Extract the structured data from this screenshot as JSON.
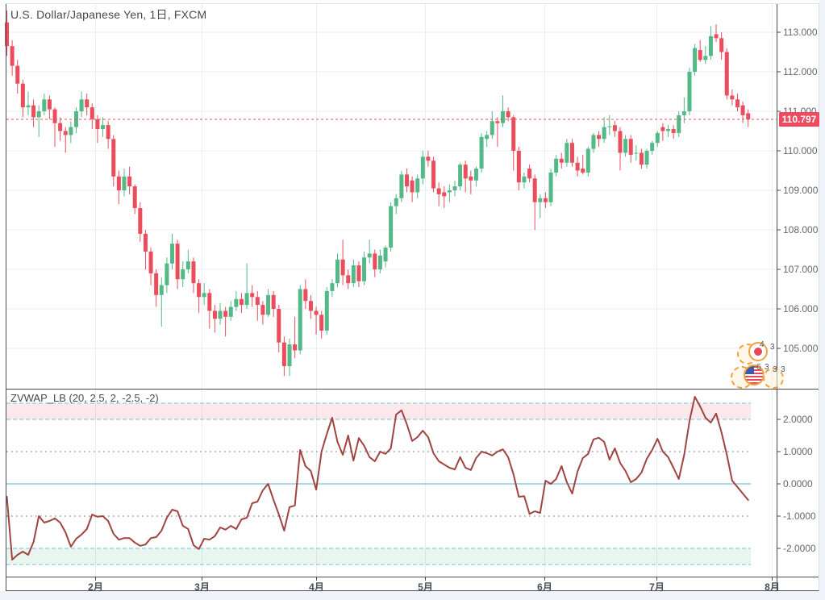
{
  "header": {
    "symbol_title": "U.S. Dollar/Japanese Yen, 1日, FXCM"
  },
  "indicator_header": {
    "title": "ZVWAP_LB (20, 2.5, 2, -2.5, -2)"
  },
  "price_axis": {
    "labels": [
      "113.000",
      "112.000",
      "111.000",
      "110.000",
      "109.000",
      "108.000",
      "107.000",
      "106.000",
      "105.000"
    ],
    "last_price_label": "110.797"
  },
  "value_axis": {
    "labels": [
      "2.0000",
      "1.0000",
      "0.0000",
      "-1.0000",
      "-2.0000"
    ]
  },
  "time_axis": {
    "labels": [
      "2月",
      "3月",
      "4月",
      "5月",
      "6月",
      "7月",
      "8月"
    ]
  },
  "event_markers": {
    "top_group_digits": [
      "4",
      "3"
    ],
    "bottom_group_digits": [
      "6",
      "3",
      "3",
      "3"
    ]
  },
  "colors": {
    "up": "#53b987",
    "down": "#eb4d5c",
    "indicator_line": "#a04441",
    "last_price_bg": "#ef4a60",
    "current_price_line": "#ef4a60",
    "band_edge": "#74c3d8",
    "zero_line": "#5cb6cf",
    "dotted_level": "#90949c",
    "grid": "#e9eef4",
    "border": "#4a4d56",
    "page_bg": "#f0f3fa"
  },
  "chart_data": [
    {
      "type": "candlestick",
      "pane": "main",
      "title": "U.S. Dollar/Japanese Yen, 1日, FXCM",
      "ylim": [
        104.2,
        113.7
      ],
      "y_ticks": [
        "113.000",
        "112.000",
        "111.000",
        "110.000",
        "109.000",
        "108.000",
        "107.000",
        "106.000",
        "105.000"
      ],
      "x_ticks": [
        "2月",
        "3月",
        "4月",
        "5月",
        "6月",
        "7月",
        "8月"
      ],
      "grid": true,
      "last_price": 110.797,
      "candles": [
        [
          113.25,
          113.55,
          112.4,
          112.65
        ],
        [
          112.65,
          112.8,
          111.9,
          112.15
        ],
        [
          112.15,
          112.3,
          111.45,
          111.7
        ],
        [
          111.7,
          111.8,
          110.85,
          111.1
        ],
        [
          111.1,
          111.5,
          110.9,
          111.15
        ],
        [
          111.15,
          111.3,
          110.6,
          110.85
        ],
        [
          110.85,
          111.15,
          110.35,
          111.0
        ],
        [
          111.0,
          111.45,
          110.9,
          111.3
        ],
        [
          111.3,
          111.4,
          110.8,
          111.05
        ],
        [
          111.05,
          111.1,
          110.1,
          110.7
        ],
        [
          110.7,
          110.85,
          110.25,
          110.5
        ],
        [
          110.5,
          110.6,
          109.95,
          110.4
        ],
        [
          110.4,
          110.75,
          110.2,
          110.6
        ],
        [
          110.6,
          111.1,
          110.45,
          111.0
        ],
        [
          111.0,
          111.5,
          110.85,
          111.3
        ],
        [
          111.3,
          111.45,
          110.9,
          111.1
        ],
        [
          111.1,
          111.2,
          110.55,
          110.8
        ],
        [
          110.8,
          110.9,
          110.2,
          110.55
        ],
        [
          110.55,
          110.85,
          110.35,
          110.65
        ],
        [
          110.65,
          110.75,
          110.05,
          110.3
        ],
        [
          110.3,
          110.4,
          109.1,
          109.35
        ],
        [
          109.35,
          109.5,
          108.65,
          109.0
        ],
        [
          109.0,
          109.55,
          108.85,
          109.35
        ],
        [
          109.35,
          109.6,
          108.9,
          109.1
        ],
        [
          109.1,
          109.15,
          108.4,
          108.55
        ],
        [
          108.55,
          108.7,
          107.7,
          107.9
        ],
        [
          107.9,
          108.0,
          107.0,
          107.45
        ],
        [
          107.45,
          107.55,
          106.6,
          106.9
        ],
        [
          106.9,
          107.0,
          106.05,
          106.35
        ],
        [
          106.35,
          106.8,
          105.55,
          106.6
        ],
        [
          106.6,
          107.3,
          106.4,
          107.15
        ],
        [
          107.15,
          107.9,
          107.0,
          107.65
        ],
        [
          107.65,
          107.75,
          106.5,
          106.75
        ],
        [
          106.75,
          107.2,
          106.55,
          107.0
        ],
        [
          107.0,
          107.5,
          106.9,
          107.2
        ],
        [
          107.2,
          107.3,
          106.4,
          106.65
        ],
        [
          106.65,
          106.75,
          105.9,
          106.3
        ],
        [
          106.3,
          106.65,
          106.1,
          106.4
        ],
        [
          106.4,
          106.5,
          105.5,
          105.95
        ],
        [
          105.95,
          106.1,
          105.4,
          105.75
        ],
        [
          105.75,
          106.15,
          105.6,
          105.95
        ],
        [
          105.95,
          106.05,
          105.3,
          105.8
        ],
        [
          105.8,
          106.2,
          105.7,
          106.05
        ],
        [
          106.05,
          106.45,
          105.95,
          106.25
        ],
        [
          106.25,
          106.4,
          105.9,
          106.1
        ],
        [
          106.1,
          107.15,
          106.0,
          106.4
        ],
        [
          106.4,
          106.6,
          106.05,
          106.3
        ],
        [
          106.3,
          106.45,
          105.7,
          106.1
        ],
        [
          106.1,
          106.2,
          105.6,
          105.85
        ],
        [
          105.85,
          106.5,
          105.8,
          106.35
        ],
        [
          106.35,
          106.45,
          105.8,
          106.0
        ],
        [
          106.0,
          106.1,
          104.9,
          105.15
        ],
        [
          105.15,
          105.3,
          104.3,
          104.55
        ],
        [
          104.55,
          105.25,
          104.3,
          105.1
        ],
        [
          105.1,
          105.8,
          104.75,
          104.95
        ],
        [
          104.95,
          106.6,
          104.85,
          106.5
        ],
        [
          106.5,
          106.75,
          106.0,
          106.2
        ],
        [
          106.2,
          106.35,
          105.75,
          105.95
        ],
        [
          105.95,
          106.05,
          105.35,
          105.85
        ],
        [
          105.85,
          105.95,
          105.25,
          105.45
        ],
        [
          105.45,
          106.55,
          105.35,
          106.45
        ],
        [
          106.45,
          106.75,
          106.3,
          106.65
        ],
        [
          106.65,
          107.4,
          106.55,
          107.25
        ],
        [
          107.25,
          107.75,
          106.6,
          106.85
        ],
        [
          106.85,
          107.0,
          106.5,
          106.65
        ],
        [
          106.65,
          107.25,
          106.55,
          107.1
        ],
        [
          107.1,
          107.2,
          106.55,
          106.7
        ],
        [
          106.7,
          107.45,
          106.6,
          107.3
        ],
        [
          107.3,
          107.75,
          107.15,
          107.4
        ],
        [
          107.4,
          107.5,
          106.8,
          107.0
        ],
        [
          107.0,
          107.5,
          106.9,
          107.35
        ],
        [
          107.2,
          107.6,
          107.05,
          107.55
        ],
        [
          107.55,
          108.7,
          107.45,
          108.6
        ],
        [
          108.6,
          108.9,
          108.4,
          108.8
        ],
        [
          108.8,
          109.5,
          108.7,
          109.4
        ],
        [
          109.4,
          109.55,
          108.95,
          109.1
        ],
        [
          109.25,
          109.35,
          108.7,
          108.95
        ],
        [
          108.95,
          109.4,
          108.8,
          109.3
        ],
        [
          109.3,
          110.0,
          109.15,
          109.85
        ],
        [
          109.85,
          110.0,
          109.6,
          109.75
        ],
        [
          109.75,
          109.85,
          108.95,
          109.05
        ],
        [
          109.05,
          109.2,
          108.6,
          108.9
        ],
        [
          108.95,
          109.1,
          108.55,
          108.85
        ],
        [
          108.95,
          109.15,
          108.7,
          109.0
        ],
        [
          109.0,
          109.25,
          108.85,
          109.1
        ],
        [
          109.1,
          109.7,
          109.0,
          109.65
        ],
        [
          109.65,
          109.75,
          108.95,
          109.3
        ],
        [
          109.35,
          109.5,
          108.9,
          109.25
        ],
        [
          109.25,
          109.6,
          109.1,
          109.55
        ],
        [
          109.55,
          110.45,
          109.45,
          110.35
        ],
        [
          110.3,
          110.5,
          110.1,
          110.4
        ],
        [
          110.4,
          111.0,
          110.3,
          110.75
        ],
        [
          110.75,
          110.85,
          110.1,
          110.7
        ],
        [
          110.7,
          111.4,
          110.6,
          111.0
        ],
        [
          111.0,
          111.1,
          110.75,
          110.85
        ],
        [
          110.85,
          110.9,
          109.5,
          110.0
        ],
        [
          110.0,
          110.1,
          109.0,
          109.2
        ],
        [
          109.2,
          109.45,
          109.05,
          109.35
        ],
        [
          109.55,
          109.65,
          109.2,
          109.3
        ],
        [
          109.3,
          109.4,
          108.0,
          108.7
        ],
        [
          108.7,
          108.9,
          108.3,
          108.8
        ],
        [
          108.8,
          108.95,
          108.55,
          108.7
        ],
        [
          108.7,
          109.55,
          108.6,
          109.45
        ],
        [
          109.45,
          109.9,
          109.35,
          109.8
        ],
        [
          109.8,
          109.95,
          109.55,
          109.7
        ],
        [
          109.7,
          110.3,
          109.6,
          110.2
        ],
        [
          110.2,
          110.3,
          109.6,
          109.7
        ],
        [
          109.7,
          109.85,
          109.35,
          109.5
        ],
        [
          109.55,
          109.9,
          109.4,
          109.45
        ],
        [
          109.45,
          110.1,
          109.35,
          110.05
        ],
        [
          110.05,
          110.45,
          109.95,
          110.4
        ],
        [
          110.4,
          110.5,
          110.1,
          110.3
        ],
        [
          110.3,
          110.85,
          110.2,
          110.6
        ],
        [
          110.6,
          110.9,
          110.4,
          110.62
        ],
        [
          110.65,
          110.75,
          110.35,
          110.5
        ],
        [
          110.5,
          110.6,
          109.5,
          109.95
        ],
        [
          109.95,
          110.4,
          109.85,
          110.3
        ],
        [
          110.3,
          110.4,
          109.7,
          109.9
        ],
        [
          109.95,
          110.15,
          109.75,
          109.95
        ],
        [
          109.95,
          110.05,
          109.55,
          109.65
        ],
        [
          109.65,
          110.05,
          109.55,
          110.0
        ],
        [
          110.0,
          110.25,
          109.9,
          110.2
        ],
        [
          110.2,
          110.5,
          110.1,
          110.45
        ],
        [
          110.6,
          110.7,
          110.25,
          110.5
        ],
        [
          110.5,
          110.65,
          110.35,
          110.55
        ],
        [
          110.55,
          110.65,
          110.3,
          110.45
        ],
        [
          110.45,
          111.0,
          110.35,
          110.9
        ],
        [
          110.9,
          111.35,
          110.7,
          111.0
        ],
        [
          111.0,
          112.1,
          110.9,
          112.0
        ],
        [
          112.0,
          112.7,
          111.9,
          112.6
        ],
        [
          112.55,
          112.8,
          112.25,
          112.3
        ],
        [
          112.3,
          112.65,
          112.2,
          112.4
        ],
        [
          112.4,
          113.15,
          112.3,
          112.9
        ],
        [
          112.95,
          113.2,
          112.75,
          112.85
        ],
        [
          112.85,
          113.0,
          112.3,
          112.5
        ],
        [
          112.5,
          112.6,
          111.3,
          111.4
        ],
        [
          111.4,
          111.55,
          111.15,
          111.3
        ],
        [
          111.3,
          111.45,
          111.0,
          111.1
        ],
        [
          111.15,
          111.25,
          110.7,
          110.9
        ],
        [
          110.95,
          111.05,
          110.6,
          110.797
        ]
      ]
    },
    {
      "type": "line",
      "pane": "indicator",
      "title": "ZVWAP_LB (20, 2.5, 2, -2.5, -2)",
      "ylim": [
        -2.75,
        2.85
      ],
      "y_ticks": [
        "2.0000",
        "1.0000",
        "0.0000",
        "-1.0000",
        "-2.0000"
      ],
      "bands": [
        {
          "from": 2.0,
          "to": 2.5,
          "fill": "down-color",
          "opacity": 0.12
        },
        {
          "from": -2.5,
          "to": -2.0,
          "fill": "up-color",
          "opacity": 0.13
        }
      ],
      "hlines": [
        {
          "value": 1.0,
          "style": "dotted-gray"
        },
        {
          "value": 0.0,
          "style": "solid-cyan"
        },
        {
          "value": -1.0,
          "style": "dotted-gray"
        }
      ],
      "values": [
        -0.4,
        -2.35,
        -2.2,
        -2.1,
        -2.2,
        -1.8,
        -1.0,
        -1.2,
        -1.15,
        -1.07,
        -1.2,
        -1.5,
        -1.95,
        -1.7,
        -1.57,
        -1.4,
        -0.95,
        -1.02,
        -1.0,
        -1.15,
        -1.55,
        -1.73,
        -1.68,
        -1.68,
        -1.82,
        -1.92,
        -1.88,
        -1.68,
        -1.65,
        -1.45,
        -1.05,
        -0.8,
        -0.85,
        -1.3,
        -1.4,
        -1.9,
        -2.02,
        -1.7,
        -1.73,
        -1.62,
        -1.35,
        -1.42,
        -1.3,
        -1.4,
        -1.1,
        -1.05,
        -0.6,
        -0.55,
        -0.2,
        0.0,
        -0.5,
        -0.95,
        -1.45,
        -0.72,
        -0.67,
        1.05,
        0.55,
        0.4,
        -0.18,
        1.0,
        1.55,
        2.05,
        1.3,
        0.9,
        1.5,
        0.72,
        1.42,
        1.18,
        0.83,
        0.7,
        1.0,
        0.93,
        1.1,
        2.15,
        2.28,
        1.85,
        1.33,
        1.45,
        1.65,
        1.45,
        0.95,
        0.7,
        0.6,
        0.5,
        0.45,
        0.83,
        0.5,
        0.43,
        0.8,
        1.0,
        0.95,
        0.88,
        1.0,
        1.07,
        0.83,
        0.3,
        -0.4,
        -0.38,
        -0.93,
        -0.85,
        -0.9,
        0.1,
        0.0,
        0.15,
        0.55,
        0.05,
        -0.3,
        0.38,
        0.8,
        0.93,
        1.38,
        1.43,
        1.3,
        0.75,
        1.1,
        0.65,
        0.4,
        0.05,
        0.15,
        0.35,
        0.78,
        1.05,
        1.4,
        1.0,
        0.83,
        0.5,
        0.15,
        0.9,
        1.95,
        2.7,
        2.4,
        2.05,
        1.9,
        2.18,
        1.6,
        0.9,
        0.1,
        -0.1,
        -0.3,
        -0.5
      ]
    }
  ]
}
